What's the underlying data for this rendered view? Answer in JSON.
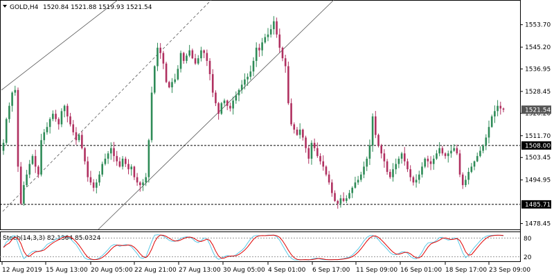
{
  "header": {
    "symbol": "GOLD,H4",
    "ohlc": "1520.84 1521.88 1519.93 1521.54"
  },
  "indicator": {
    "label": "Stoch(14,3,3) 82.1364 85.0324",
    "level_high": "80",
    "level_low": "20",
    "main_color": "#5bc8e6",
    "signal_color": "#e00000"
  },
  "price_axis": {
    "ticks": [
      "1553.70",
      "1545.20",
      "1536.95",
      "1528.45",
      "1520.20",
      "1511.70",
      "1503.45",
      "1494.95",
      "1478.45"
    ],
    "current_price": "1521.54",
    "support_level": "1508.00",
    "low_level": "1485.71"
  },
  "time_axis": {
    "labels": [
      "12 Aug 2019",
      "15 Aug 13:00",
      "20 Aug 05:00",
      "22 Aug 21:00",
      "27 Aug 13:00",
      "30 Aug 05:00",
      "4 Sep 01:00",
      "6 Sep 17:00",
      "11 Sep 09:00",
      "16 Sep 01:00",
      "18 Sep 17:00",
      "23 Sep 09:00"
    ]
  },
  "colors": {
    "bull": "#2e8b57",
    "bear": "#b03060",
    "grid": "#000000"
  },
  "chart_data": {
    "type": "candlestick",
    "title": "GOLD,H4",
    "ylim": [
      1476.5,
      1562
    ],
    "horizontal_levels": [
      1508.0,
      1485.71
    ],
    "closes": [
      1509,
      1518,
      1523,
      1528,
      1529,
      1500,
      1486,
      1493,
      1497,
      1501,
      1504,
      1500,
      1497,
      1510,
      1513,
      1515,
      1518,
      1520,
      1518,
      1516,
      1521,
      1523,
      1519,
      1516,
      1513,
      1510,
      1512,
      1507,
      1502,
      1496,
      1494,
      1492,
      1494,
      1497,
      1501,
      1503,
      1505,
      1507,
      1504,
      1502,
      1500,
      1503,
      1501,
      1499,
      1500,
      1496,
      1494,
      1493,
      1494,
      1496,
      1510,
      1528,
      1538,
      1545,
      1543,
      1539,
      1532,
      1530,
      1532,
      1533,
      1537,
      1543,
      1540,
      1542,
      1544,
      1541,
      1539,
      1541,
      1544,
      1543,
      1540,
      1535,
      1528,
      1524,
      1520,
      1524,
      1525,
      1523,
      1522,
      1525,
      1527,
      1529,
      1531,
      1533,
      1534,
      1536,
      1540,
      1545,
      1544,
      1547,
      1549,
      1550,
      1552,
      1555,
      1550,
      1545,
      1541,
      1538,
      1524,
      1516,
      1514,
      1512,
      1514,
      1511,
      1507,
      1503,
      1509,
      1507,
      1504,
      1502,
      1500,
      1497,
      1494,
      1490,
      1487,
      1486,
      1488,
      1487,
      1488,
      1490,
      1492,
      1494,
      1495,
      1497,
      1500,
      1503,
      1508,
      1519,
      1512,
      1508,
      1505,
      1502,
      1498,
      1496,
      1499,
      1501,
      1503,
      1505,
      1502,
      1499,
      1496,
      1494,
      1495,
      1497,
      1500,
      1503,
      1502,
      1501,
      1503,
      1505,
      1507,
      1505,
      1504,
      1505,
      1506,
      1507,
      1505,
      1497,
      1493,
      1495,
      1498,
      1500,
      1502,
      1504,
      1506,
      1508,
      1511,
      1515,
      1519,
      1521,
      1523,
      1522,
      1521.54
    ],
    "stochastic": {
      "main_last": 82.1364,
      "signal_last": 85.0324
    },
    "xlabels": [
      "12 Aug 2019",
      "15 Aug 13:00",
      "20 Aug 05:00",
      "22 Aug 21:00",
      "27 Aug 13:00",
      "30 Aug 05:00",
      "4 Sep 01:00",
      "6 Sep 17:00",
      "11 Sep 09:00",
      "16 Sep 01:00",
      "18 Sep 17:00",
      "23 Sep 09:00"
    ]
  }
}
